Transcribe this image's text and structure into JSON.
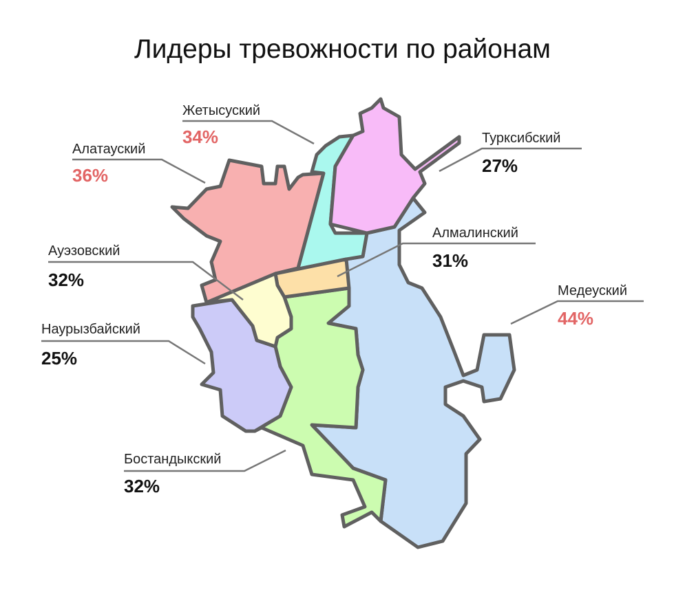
{
  "title": "Лидеры тревожности по районам",
  "colors": {
    "highlight": "#e26565",
    "normal": "#111111",
    "border": "#606060"
  },
  "districts": {
    "zhetysu": {
      "name": "Жетысуский",
      "value": "34%",
      "highlight": true,
      "fill": "#aaf8ee"
    },
    "alatau": {
      "name": "Алатауский",
      "value": "36%",
      "highlight": true,
      "fill": "#f8b0b0"
    },
    "turksib": {
      "name": "Турксибский",
      "value": "27%",
      "highlight": false,
      "fill": "#f8bbf8"
    },
    "almaly": {
      "name": "Алмалинский",
      "value": "31%",
      "highlight": false,
      "fill": "#fde0a8"
    },
    "auezov": {
      "name": "Ауэзовский",
      "value": "32%",
      "highlight": false,
      "fill": "#fefdd0"
    },
    "medeu": {
      "name": "Медеуский",
      "value": "44%",
      "highlight": true,
      "fill": "#c8e0f8"
    },
    "nauryzbay": {
      "name": "Наурызбайский",
      "value": "25%",
      "highlight": false,
      "fill": "#cccbf8"
    },
    "bostandyk": {
      "name": "Бостандыкский",
      "value": "32%",
      "highlight": false,
      "fill": "#ccfcb0"
    }
  }
}
